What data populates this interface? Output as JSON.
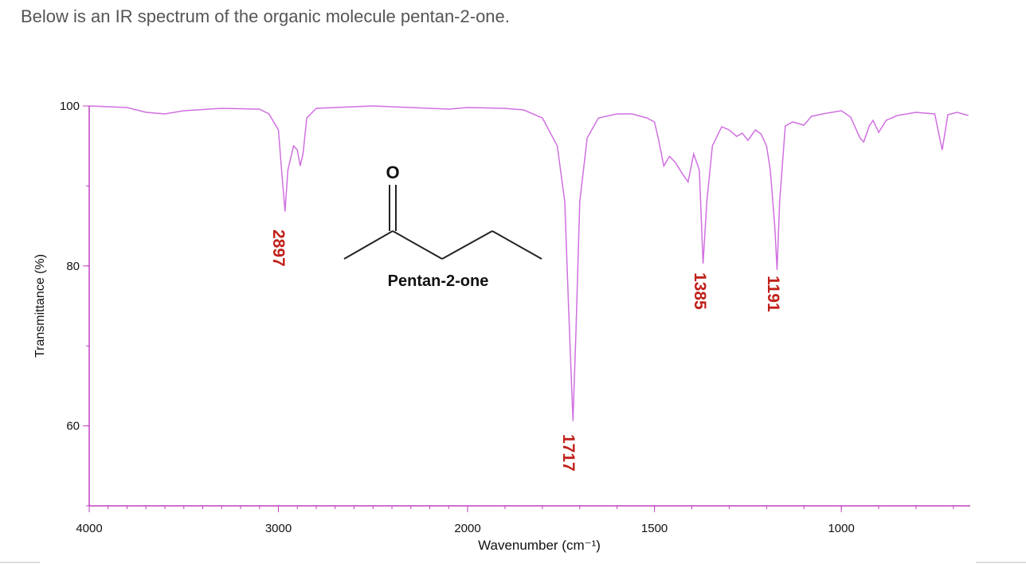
{
  "intro": "Below is an IR spectrum of the organic molecule pentan-2-one.",
  "chart_data": {
    "type": "line",
    "xlabel": "Wavenumber (cm⁻¹)",
    "ylabel": "Transmittance (%)",
    "molecule_label": "Pentan-2-one",
    "atom_label": "O",
    "xlim": [
      4000,
      655
    ],
    "xbreak": 2000,
    "xticks": [
      4000,
      3000,
      2000,
      1500,
      1000
    ],
    "xminor_step": 100,
    "ylim": [
      50,
      100
    ],
    "yticks": [
      60,
      80,
      100
    ],
    "yminor_step": 10,
    "series": [
      {
        "color": "#d070e0",
        "x": [
          4000,
          3800,
          3700,
          3600,
          3500,
          3300,
          3100,
          3050,
          3000,
          2980,
          2965,
          2950,
          2935,
          2920,
          2900,
          2885,
          2870,
          2850,
          2800,
          2500,
          2100,
          2000,
          1900,
          1850,
          1800,
          1760,
          1740,
          1730,
          1718,
          1710,
          1700,
          1680,
          1650,
          1600,
          1560,
          1520,
          1500,
          1490,
          1475,
          1460,
          1445,
          1425,
          1410,
          1395,
          1380,
          1370,
          1360,
          1345,
          1320,
          1300,
          1280,
          1265,
          1250,
          1230,
          1215,
          1200,
          1190,
          1178,
          1172,
          1165,
          1150,
          1130,
          1100,
          1080,
          1050,
          1000,
          975,
          950,
          940,
          925,
          915,
          900,
          880,
          850,
          800,
          750,
          730,
          715,
          690,
          660
        ],
        "values": [
          100,
          99.8,
          99.2,
          99,
          99.4,
          99.7,
          99.6,
          99,
          97,
          91,
          86.8,
          92,
          93.5,
          95,
          94.5,
          92.5,
          94,
          98.5,
          99.7,
          100,
          99.6,
          99.8,
          99.7,
          99.5,
          98.5,
          95,
          88,
          75,
          60.6,
          72,
          88,
          96,
          98.5,
          99,
          99,
          98.5,
          98,
          96,
          92.5,
          93.7,
          93,
          91.5,
          90.5,
          94,
          92,
          80.3,
          88,
          95,
          97.4,
          97,
          96.2,
          96.6,
          95.7,
          97,
          96.5,
          95,
          92,
          85,
          79.5,
          88,
          97.5,
          98,
          97.6,
          98.7,
          99,
          99.4,
          98.6,
          96,
          95.5,
          97.5,
          98.2,
          96.7,
          98.2,
          98.8,
          99.2,
          99,
          94.5,
          98.9,
          99.2,
          98.8
        ]
      }
    ],
    "annotations": [
      {
        "text": "2897",
        "color": "#c0201a"
      },
      {
        "text": "1717",
        "color": "#c0201a"
      },
      {
        "text": "1385",
        "color": "#c0201a"
      },
      {
        "text": "1191",
        "color": "#c0201a"
      }
    ]
  }
}
